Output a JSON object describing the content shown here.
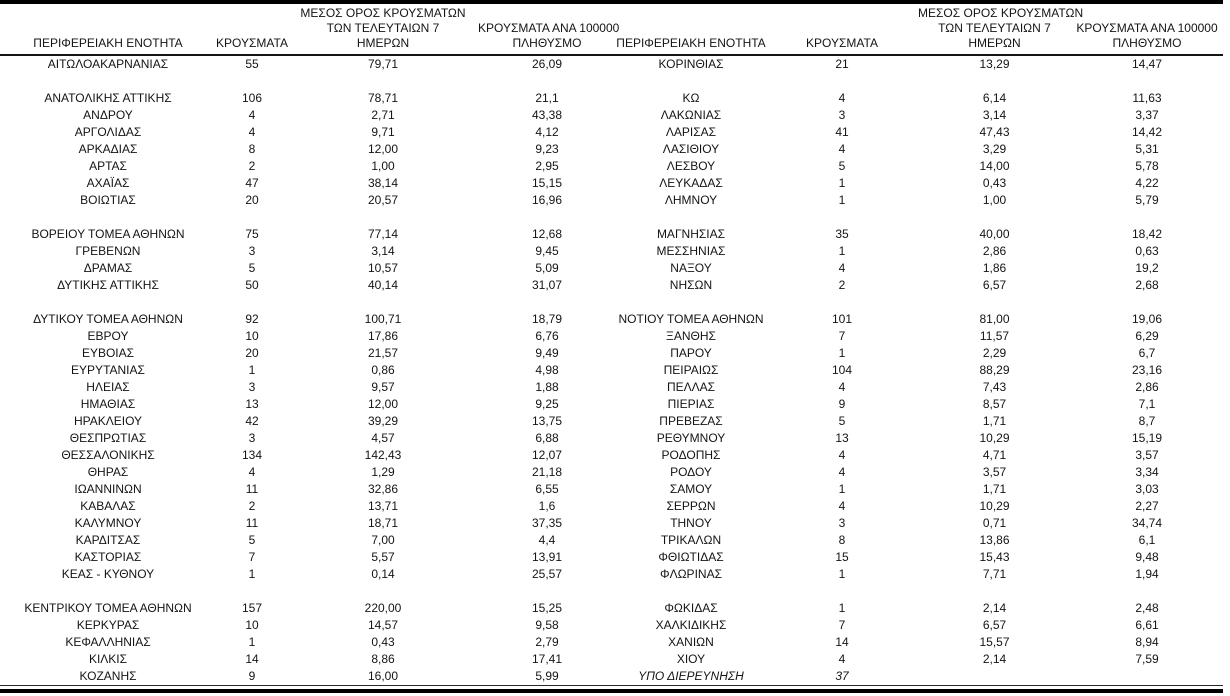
{
  "table": {
    "header": {
      "region": "ΠΕΡΙΦΕΡΕΙΑΚΗ ΕΝΟΤΗΤΑ",
      "cases": "ΚΡΟΥΣΜΑΤΑ",
      "avg7_line1": "ΜΕΣΟΣ ΟΡΟΣ ΚΡΟΥΣΜΑΤΩΝ",
      "avg7_line2": "ΤΩΝ ΤΕΛΕΥΤΑΙΩΝ 7",
      "avg7_line3": "ΗΜΕΡΩΝ",
      "per100k_line1": "ΚΡΟΥΣΜΑΤΑ ΑΝΑ 100000",
      "per100k_line2": "ΠΛΗΘΥΣΜΟ"
    },
    "left_rows": [
      {
        "region": "ΑΙΤΩΛΟΑΚΑΡΝΑΝΙΑΣ",
        "cases": "55",
        "avg7": "79,71",
        "per100k": "26,09"
      },
      null,
      {
        "region": "ΑΝΑΤΟΛΙΚΗΣ ΑΤΤΙΚΗΣ",
        "cases": "106",
        "avg7": "78,71",
        "per100k": "21,1"
      },
      {
        "region": "ΑΝΔΡΟΥ",
        "cases": "4",
        "avg7": "2,71",
        "per100k": "43,38"
      },
      {
        "region": "ΑΡΓΟΛΙΔΑΣ",
        "cases": "4",
        "avg7": "9,71",
        "per100k": "4,12"
      },
      {
        "region": "ΑΡΚΑΔΙΑΣ",
        "cases": "8",
        "avg7": "12,00",
        "per100k": "9,23"
      },
      {
        "region": "ΑΡΤΑΣ",
        "cases": "2",
        "avg7": "1,00",
        "per100k": "2,95"
      },
      {
        "region": "ΑΧΑΪΑΣ",
        "cases": "47",
        "avg7": "38,14",
        "per100k": "15,15"
      },
      {
        "region": "ΒΟΙΩΤΙΑΣ",
        "cases": "20",
        "avg7": "20,57",
        "per100k": "16,96"
      },
      null,
      {
        "region": "ΒΟΡΕΙΟΥ ΤΟΜΕΑ ΑΘΗΝΩΝ",
        "cases": "75",
        "avg7": "77,14",
        "per100k": "12,68"
      },
      {
        "region": "ΓΡΕΒΕΝΩΝ",
        "cases": "3",
        "avg7": "3,14",
        "per100k": "9,45"
      },
      {
        "region": "ΔΡΑΜΑΣ",
        "cases": "5",
        "avg7": "10,57",
        "per100k": "5,09"
      },
      {
        "region": "ΔΥΤΙΚΗΣ ΑΤΤΙΚΗΣ",
        "cases": "50",
        "avg7": "40,14",
        "per100k": "31,07"
      },
      null,
      {
        "region": "ΔΥΤΙΚΟΥ ΤΟΜΕΑ ΑΘΗΝΩΝ",
        "cases": "92",
        "avg7": "100,71",
        "per100k": "18,79"
      },
      {
        "region": "ΕΒΡΟΥ",
        "cases": "10",
        "avg7": "17,86",
        "per100k": "6,76"
      },
      {
        "region": "ΕΥΒΟΙΑΣ",
        "cases": "20",
        "avg7": "21,57",
        "per100k": "9,49"
      },
      {
        "region": "ΕΥΡΥΤΑΝΙΑΣ",
        "cases": "1",
        "avg7": "0,86",
        "per100k": "4,98"
      },
      {
        "region": "ΗΛΕΙΑΣ",
        "cases": "3",
        "avg7": "9,57",
        "per100k": "1,88"
      },
      {
        "region": "ΗΜΑΘΙΑΣ",
        "cases": "13",
        "avg7": "12,00",
        "per100k": "9,25"
      },
      {
        "region": "ΗΡΑΚΛΕΙΟΥ",
        "cases": "42",
        "avg7": "39,29",
        "per100k": "13,75"
      },
      {
        "region": "ΘΕΣΠΡΩΤΙΑΣ",
        "cases": "3",
        "avg7": "4,57",
        "per100k": "6,88"
      },
      {
        "region": "ΘΕΣΣΑΛΟΝΙΚΗΣ",
        "cases": "134",
        "avg7": "142,43",
        "per100k": "12,07"
      },
      {
        "region": "ΘΗΡΑΣ",
        "cases": "4",
        "avg7": "1,29",
        "per100k": "21,18"
      },
      {
        "region": "ΙΩΑΝΝΙΝΩΝ",
        "cases": "11",
        "avg7": "32,86",
        "per100k": "6,55"
      },
      {
        "region": "ΚΑΒΑΛΑΣ",
        "cases": "2",
        "avg7": "13,71",
        "per100k": "1,6"
      },
      {
        "region": "ΚΑΛΥΜΝΟΥ",
        "cases": "11",
        "avg7": "18,71",
        "per100k": "37,35"
      },
      {
        "region": "ΚΑΡΔΙΤΣΑΣ",
        "cases": "5",
        "avg7": "7,00",
        "per100k": "4,4"
      },
      {
        "region": "ΚΑΣΤΟΡΙΑΣ",
        "cases": "7",
        "avg7": "5,57",
        "per100k": "13,91"
      },
      {
        "region": "ΚΕΑΣ - ΚΥΘΝΟΥ",
        "cases": "1",
        "avg7": "0,14",
        "per100k": "25,57"
      },
      null,
      {
        "region": "ΚΕΝΤΡΙΚΟΥ ΤΟΜΕΑ ΑΘΗΝΩΝ",
        "cases": "157",
        "avg7": "220,00",
        "per100k": "15,25"
      },
      {
        "region": "ΚΕΡΚΥΡΑΣ",
        "cases": "10",
        "avg7": "14,57",
        "per100k": "9,58"
      },
      {
        "region": "ΚΕΦΑΛΛΗΝΙΑΣ",
        "cases": "1",
        "avg7": "0,43",
        "per100k": "2,79"
      },
      {
        "region": "ΚΙΛΚΙΣ",
        "cases": "14",
        "avg7": "8,86",
        "per100k": "17,41"
      },
      {
        "region": "ΚΟΖΑΝΗΣ",
        "cases": "9",
        "avg7": "16,00",
        "per100k": "5,99"
      }
    ],
    "right_rows": [
      {
        "region": "ΚΟΡΙΝΘΙΑΣ",
        "cases": "21",
        "avg7": "13,29",
        "per100k": "14,47"
      },
      null,
      {
        "region": "ΚΩ",
        "cases": "4",
        "avg7": "6,14",
        "per100k": "11,63"
      },
      {
        "region": "ΛΑΚΩΝΙΑΣ",
        "cases": "3",
        "avg7": "3,14",
        "per100k": "3,37"
      },
      {
        "region": "ΛΑΡΙΣΑΣ",
        "cases": "41",
        "avg7": "47,43",
        "per100k": "14,42"
      },
      {
        "region": "ΛΑΣΙΘΙΟΥ",
        "cases": "4",
        "avg7": "3,29",
        "per100k": "5,31"
      },
      {
        "region": "ΛΕΣΒΟΥ",
        "cases": "5",
        "avg7": "14,00",
        "per100k": "5,78"
      },
      {
        "region": "ΛΕΥΚΑΔΑΣ",
        "cases": "1",
        "avg7": "0,43",
        "per100k": "4,22"
      },
      {
        "region": "ΛΗΜΝΟΥ",
        "cases": "1",
        "avg7": "1,00",
        "per100k": "5,79"
      },
      null,
      {
        "region": "ΜΑΓΝΗΣΙΑΣ",
        "cases": "35",
        "avg7": "40,00",
        "per100k": "18,42"
      },
      {
        "region": "ΜΕΣΣΗΝΙΑΣ",
        "cases": "1",
        "avg7": "2,86",
        "per100k": "0,63"
      },
      {
        "region": "ΝΑΞΟΥ",
        "cases": "4",
        "avg7": "1,86",
        "per100k": "19,2"
      },
      {
        "region": "ΝΗΣΩΝ",
        "cases": "2",
        "avg7": "6,57",
        "per100k": "2,68"
      },
      null,
      {
        "region": "ΝΟΤΙΟΥ ΤΟΜΕΑ ΑΘΗΝΩΝ",
        "cases": "101",
        "avg7": "81,00",
        "per100k": "19,06"
      },
      {
        "region": "ΞΑΝΘΗΣ",
        "cases": "7",
        "avg7": "11,57",
        "per100k": "6,29"
      },
      {
        "region": "ΠΑΡΟΥ",
        "cases": "1",
        "avg7": "2,29",
        "per100k": "6,7"
      },
      {
        "region": "ΠΕΙΡΑΙΩΣ",
        "cases": "104",
        "avg7": "88,29",
        "per100k": "23,16"
      },
      {
        "region": "ΠΕΛΛΑΣ",
        "cases": "4",
        "avg7": "7,43",
        "per100k": "2,86"
      },
      {
        "region": "ΠΙΕΡΙΑΣ",
        "cases": "9",
        "avg7": "8,57",
        "per100k": "7,1"
      },
      {
        "region": "ΠΡΕΒΕΖΑΣ",
        "cases": "5",
        "avg7": "1,71",
        "per100k": "8,7"
      },
      {
        "region": "ΡΕΘΥΜΝΟΥ",
        "cases": "13",
        "avg7": "10,29",
        "per100k": "15,19"
      },
      {
        "region": "ΡΟΔΟΠΗΣ",
        "cases": "4",
        "avg7": "4,71",
        "per100k": "3,57"
      },
      {
        "region": "ΡΟΔΟΥ",
        "cases": "4",
        "avg7": "3,57",
        "per100k": "3,34"
      },
      {
        "region": "ΣΑΜΟΥ",
        "cases": "1",
        "avg7": "1,71",
        "per100k": "3,03"
      },
      {
        "region": "ΣΕΡΡΩΝ",
        "cases": "4",
        "avg7": "10,29",
        "per100k": "2,27"
      },
      {
        "region": "ΤΗΝΟΥ",
        "cases": "3",
        "avg7": "0,71",
        "per100k": "34,74"
      },
      {
        "region": "ΤΡΙΚΑΛΩΝ",
        "cases": "8",
        "avg7": "13,86",
        "per100k": "6,1"
      },
      {
        "region": "ΦΘΙΩΤΙΔΑΣ",
        "cases": "15",
        "avg7": "15,43",
        "per100k": "9,48"
      },
      {
        "region": "ΦΛΩΡΙΝΑΣ",
        "cases": "1",
        "avg7": "7,71",
        "per100k": "1,94"
      },
      null,
      {
        "region": "ΦΩΚΙΔΑΣ",
        "cases": "1",
        "avg7": "2,14",
        "per100k": "2,48"
      },
      {
        "region": "ΧΑΛΚΙΔΙΚΗΣ",
        "cases": "7",
        "avg7": "6,57",
        "per100k": "6,61"
      },
      {
        "region": "ΧΑΝΙΩΝ",
        "cases": "14",
        "avg7": "15,57",
        "per100k": "8,94"
      },
      {
        "region": "ΧΙΟΥ",
        "cases": "4",
        "avg7": "2,14",
        "per100k": "7,59"
      },
      {
        "region": "ΥΠΟ ΔΙΕΡΕΥΝΗΣΗ",
        "cases": "37",
        "avg7": "",
        "per100k": "",
        "italic": true
      }
    ]
  },
  "colors": {
    "text": "#141414",
    "border": "#000000",
    "background": "#ffffff"
  }
}
